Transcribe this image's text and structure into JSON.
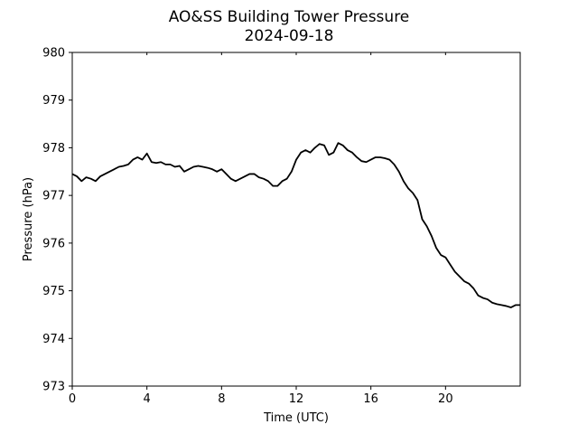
{
  "chart_data": {
    "type": "line",
    "title": "AO&SS Building Tower Pressure",
    "subtitle": "2024-09-18",
    "xlabel": "Time (UTC)",
    "ylabel": "Pressure (hPa)",
    "xlim": [
      0,
      24
    ],
    "ylim": [
      973,
      980
    ],
    "x_ticks": [
      0,
      4,
      8,
      12,
      16,
      20
    ],
    "x_tick_labels": [
      "0",
      "4",
      "8",
      "12",
      "16",
      "20"
    ],
    "y_ticks": [
      973,
      974,
      975,
      976,
      977,
      978,
      979,
      980
    ],
    "y_tick_labels": [
      "973",
      "974",
      "975",
      "976",
      "977",
      "978",
      "979",
      "980"
    ],
    "grid": false,
    "line_color": "#000000",
    "series": [
      {
        "x": [
          0,
          0.25,
          0.5,
          0.75,
          1,
          1.25,
          1.5,
          1.75,
          2,
          2.25,
          2.5,
          2.75,
          3,
          3.25,
          3.5,
          3.75,
          4,
          4.25,
          4.5,
          4.75,
          5,
          5.25,
          5.5,
          5.75,
          6,
          6.25,
          6.5,
          6.75,
          7,
          7.25,
          7.5,
          7.75,
          8,
          8.25,
          8.5,
          8.75,
          9,
          9.25,
          9.5,
          9.75,
          10,
          10.25,
          10.5,
          10.75,
          11,
          11.25,
          11.5,
          11.75,
          12,
          12.25,
          12.5,
          12.75,
          13,
          13.25,
          13.5,
          13.75,
          14,
          14.25,
          14.5,
          14.75,
          15,
          15.25,
          15.5,
          15.75,
          16,
          16.25,
          16.5,
          16.75,
          17,
          17.25,
          17.5,
          17.75,
          18,
          18.25,
          18.5,
          18.75,
          19,
          19.25,
          19.5,
          19.75,
          20,
          20.25,
          20.5,
          20.75,
          21,
          21.25,
          21.5,
          21.75,
          22,
          22.25,
          22.5,
          22.75,
          23,
          23.25,
          23.5,
          23.75,
          24
        ],
        "y": [
          977.45,
          977.4,
          977.3,
          977.38,
          977.35,
          977.3,
          977.4,
          977.45,
          977.5,
          977.55,
          977.6,
          977.62,
          977.65,
          977.75,
          977.8,
          977.75,
          977.88,
          977.7,
          977.68,
          977.7,
          977.65,
          977.65,
          977.6,
          977.62,
          977.5,
          977.55,
          977.6,
          977.62,
          977.6,
          977.58,
          977.55,
          977.5,
          977.55,
          977.45,
          977.35,
          977.3,
          977.35,
          977.4,
          977.45,
          977.45,
          977.38,
          977.35,
          977.3,
          977.2,
          977.2,
          977.3,
          977.35,
          977.5,
          977.75,
          977.9,
          977.95,
          977.9,
          978.0,
          978.08,
          978.05,
          977.85,
          977.9,
          978.1,
          978.05,
          977.95,
          977.9,
          977.8,
          977.72,
          977.7,
          977.75,
          977.8,
          977.8,
          977.78,
          977.75,
          977.65,
          977.5,
          977.3,
          977.15,
          977.05,
          976.9,
          976.5,
          976.35,
          976.15,
          975.9,
          975.75,
          975.7,
          975.55,
          975.4,
          975.3,
          975.2,
          975.15,
          975.05,
          974.9,
          974.85,
          974.82,
          974.75,
          974.72,
          974.7,
          974.68,
          974.65,
          974.7,
          974.7
        ]
      }
    ]
  }
}
